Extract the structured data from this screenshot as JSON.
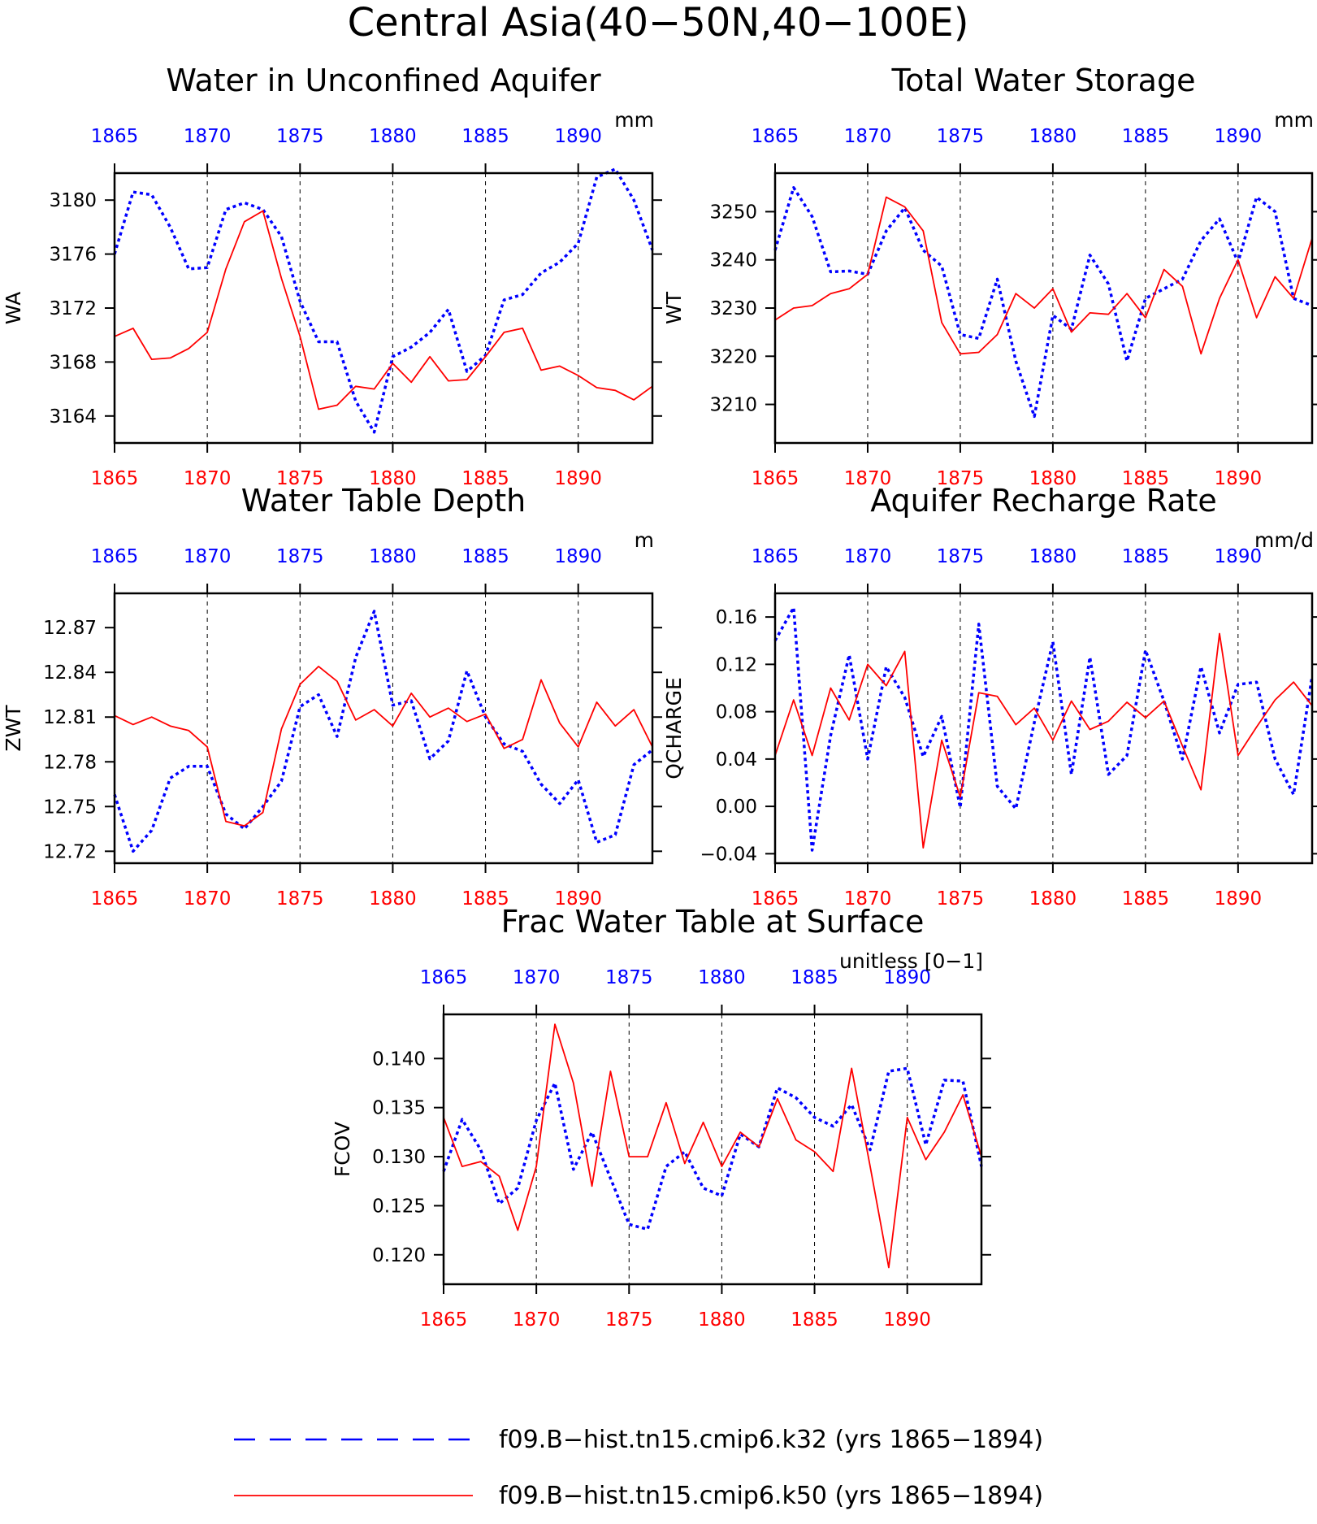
{
  "figure": {
    "title": "Central Asia(40−50N,40−100E)",
    "colors": {
      "k32": "#0000ff",
      "k50": "#ff0000",
      "axis": "#000000"
    }
  },
  "legend": {
    "items": [
      {
        "label": "f09.B−hist.tn15.cmip6.k32 (yrs 1865−1894)",
        "color": "#0000ff",
        "style": "dashed"
      },
      {
        "label": "f09.B−hist.tn15.cmip6.k50 (yrs 1865−1894)",
        "color": "#ff0000",
        "style": "solid"
      }
    ]
  },
  "chart_data": [
    {
      "type": "line",
      "title": "Water in Unconfined Aquifer",
      "ylabel": "WA",
      "units": "mm",
      "xlim": [
        1865,
        1894
      ],
      "ylim": [
        3162,
        3182
      ],
      "x_ticks": [
        1865,
        1870,
        1875,
        1880,
        1885,
        1890
      ],
      "y_ticks": [
        "3164",
        "3168",
        "3172",
        "3176",
        "3180"
      ],
      "grid": "vertical dashed at x ticks",
      "x": [
        1865,
        1866,
        1867,
        1868,
        1869,
        1870,
        1871,
        1872,
        1873,
        1874,
        1875,
        1876,
        1877,
        1878,
        1879,
        1880,
        1881,
        1882,
        1883,
        1884,
        1885,
        1886,
        1887,
        1888,
        1889,
        1890,
        1891,
        1892,
        1893,
        1894
      ],
      "series": [
        {
          "key": "k32",
          "color": "#0000ff",
          "dashed": true,
          "values": [
            3176.0,
            3180.6,
            3180.4,
            3178.0,
            3174.9,
            3175.0,
            3179.3,
            3179.8,
            3179.3,
            3177.3,
            3172.5,
            3169.5,
            3169.5,
            3165.1,
            3162.8,
            3168.4,
            3169.1,
            3170.2,
            3171.9,
            3167.3,
            3168.5,
            3172.6,
            3173.0,
            3174.6,
            3175.4,
            3176.8,
            3181.7,
            3182.3,
            3180.0,
            3176.3
          ]
        },
        {
          "key": "k50",
          "color": "#ff0000",
          "dashed": false,
          "values": [
            3169.9,
            3170.5,
            3168.2,
            3168.3,
            3169.0,
            3170.2,
            3174.9,
            3178.4,
            3179.2,
            3174.2,
            3169.9,
            3164.5,
            3164.8,
            3166.2,
            3166.0,
            3167.9,
            3166.5,
            3168.4,
            3166.6,
            3166.7,
            3168.4,
            3170.2,
            3170.5,
            3167.4,
            3167.7,
            3167.0,
            3166.1,
            3165.9,
            3165.2,
            3166.2
          ]
        }
      ]
    },
    {
      "type": "line",
      "title": "Total Water Storage",
      "ylabel": "WT",
      "units": "mm",
      "xlim": [
        1865,
        1894
      ],
      "ylim": [
        3202,
        3258
      ],
      "x_ticks": [
        1865,
        1870,
        1875,
        1880,
        1885,
        1890
      ],
      "y_ticks": [
        "3210",
        "3220",
        "3230",
        "3240",
        "3250"
      ],
      "grid": "vertical dashed at x ticks",
      "x": [
        1865,
        1866,
        1867,
        1868,
        1869,
        1870,
        1871,
        1872,
        1873,
        1874,
        1875,
        1876,
        1877,
        1878,
        1879,
        1880,
        1881,
        1882,
        1883,
        1884,
        1885,
        1886,
        1887,
        1888,
        1889,
        1890,
        1891,
        1892,
        1893,
        1894
      ],
      "series": [
        {
          "key": "k32",
          "color": "#0000ff",
          "dashed": true,
          "values": [
            3242,
            3255,
            3249,
            3237.5,
            3237.7,
            3237,
            3246,
            3250.8,
            3242,
            3238.7,
            3224.5,
            3223.7,
            3236,
            3219,
            3207.5,
            3228.5,
            3225.6,
            3241,
            3235,
            3219,
            3232,
            3234,
            3236,
            3244,
            3248.5,
            3239.5,
            3253,
            3250,
            3232,
            3230.5
          ]
        },
        {
          "key": "k50",
          "color": "#ff0000",
          "dashed": false,
          "values": [
            3227.5,
            3230,
            3230.5,
            3233,
            3234,
            3237,
            3253,
            3251,
            3246,
            3227,
            3220.5,
            3220.8,
            3224.5,
            3233,
            3230,
            3234,
            3225,
            3229,
            3228.7,
            3233,
            3228,
            3238,
            3234.5,
            3220.5,
            3232,
            3240,
            3228,
            3236.5,
            3232,
            3244.5
          ]
        }
      ]
    },
    {
      "type": "line",
      "title": "Water Table Depth",
      "ylabel": "ZWT",
      "units": "m",
      "xlim": [
        1865,
        1894
      ],
      "ylim": [
        12.712,
        12.893
      ],
      "x_ticks": [
        1865,
        1870,
        1875,
        1880,
        1885,
        1890
      ],
      "y_ticks": [
        "12.72",
        "12.75",
        "12.78",
        "12.81",
        "12.84",
        "12.87"
      ],
      "grid": "vertical dashed at x ticks",
      "x": [
        1865,
        1866,
        1867,
        1868,
        1869,
        1870,
        1871,
        1872,
        1873,
        1874,
        1875,
        1876,
        1877,
        1878,
        1879,
        1880,
        1881,
        1882,
        1883,
        1884,
        1885,
        1886,
        1887,
        1888,
        1889,
        1890,
        1891,
        1892,
        1893,
        1894
      ],
      "series": [
        {
          "key": "k32",
          "color": "#0000ff",
          "dashed": true,
          "values": [
            12.758,
            12.72,
            12.734,
            12.769,
            12.777,
            12.777,
            12.745,
            12.735,
            12.75,
            12.767,
            12.817,
            12.825,
            12.797,
            12.85,
            12.881,
            12.818,
            12.821,
            12.782,
            12.794,
            12.841,
            12.81,
            12.792,
            12.787,
            12.765,
            12.752,
            12.768,
            12.726,
            12.731,
            12.778,
            12.788
          ]
        },
        {
          "key": "k50",
          "color": "#ff0000",
          "dashed": false,
          "values": [
            12.811,
            12.805,
            12.81,
            12.804,
            12.801,
            12.79,
            12.74,
            12.737,
            12.746,
            12.802,
            12.832,
            12.844,
            12.834,
            12.808,
            12.815,
            12.804,
            12.826,
            12.81,
            12.816,
            12.807,
            12.812,
            12.789,
            12.795,
            12.835,
            12.806,
            12.79,
            12.82,
            12.804,
            12.815,
            12.79
          ]
        }
      ]
    },
    {
      "type": "line",
      "title": "Aquifer Recharge Rate",
      "ylabel": "QCHARGE",
      "units": "mm/d",
      "xlim": [
        1865,
        1894
      ],
      "ylim": [
        -0.048,
        0.18
      ],
      "x_ticks": [
        1865,
        1870,
        1875,
        1880,
        1885,
        1890
      ],
      "y_ticks": [
        "−0.04",
        "0.00",
        "0.04",
        "0.08",
        "0.12",
        "0.16"
      ],
      "grid": "vertical dashed at x ticks",
      "x": [
        1865,
        1866,
        1867,
        1868,
        1869,
        1870,
        1871,
        1872,
        1873,
        1874,
        1875,
        1876,
        1877,
        1878,
        1879,
        1880,
        1881,
        1882,
        1883,
        1884,
        1885,
        1886,
        1887,
        1888,
        1889,
        1890,
        1891,
        1892,
        1893,
        1894
      ],
      "series": [
        {
          "key": "k32",
          "color": "#0000ff",
          "dashed": true,
          "values": [
            0.14,
            0.168,
            -0.037,
            0.06,
            0.128,
            0.04,
            0.118,
            0.092,
            0.042,
            0.076,
            -0.001,
            0.154,
            0.017,
            -0.002,
            0.071,
            0.139,
            0.027,
            0.126,
            0.027,
            0.043,
            0.132,
            0.089,
            0.04,
            0.118,
            0.062,
            0.103,
            0.105,
            0.04,
            0.01,
            0.11
          ]
        },
        {
          "key": "k50",
          "color": "#ff0000",
          "dashed": false,
          "values": [
            0.043,
            0.09,
            0.043,
            0.1,
            0.073,
            0.12,
            0.102,
            0.131,
            -0.035,
            0.056,
            0.008,
            0.096,
            0.093,
            0.069,
            0.083,
            0.056,
            0.089,
            0.065,
            0.072,
            0.088,
            0.075,
            0.089,
            0.051,
            0.014,
            0.146,
            0.043,
            0.067,
            0.09,
            0.105,
            0.085
          ]
        }
      ]
    },
    {
      "type": "line",
      "title": "Frac Water Table at Surface",
      "ylabel": "FCOV",
      "units": "unitless [0−1]",
      "xlim": [
        1865,
        1894
      ],
      "ylim": [
        0.117,
        0.1445
      ],
      "x_ticks": [
        1865,
        1870,
        1875,
        1880,
        1885,
        1890
      ],
      "y_ticks": [
        "0.120",
        "0.125",
        "0.130",
        "0.135",
        "0.140"
      ],
      "grid": "vertical dashed at x ticks",
      "x": [
        1865,
        1866,
        1867,
        1868,
        1869,
        1870,
        1871,
        1872,
        1873,
        1874,
        1875,
        1876,
        1877,
        1878,
        1879,
        1880,
        1881,
        1882,
        1883,
        1884,
        1885,
        1886,
        1887,
        1888,
        1889,
        1890,
        1891,
        1892,
        1893,
        1894
      ],
      "series": [
        {
          "key": "k32",
          "color": "#0000ff",
          "dashed": true,
          "values": [
            0.1285,
            0.1338,
            0.1307,
            0.1252,
            0.1268,
            0.1337,
            0.1375,
            0.1287,
            0.1325,
            0.1278,
            0.1231,
            0.1226,
            0.129,
            0.1305,
            0.1268,
            0.126,
            0.1323,
            0.131,
            0.137,
            0.136,
            0.134,
            0.1331,
            0.1353,
            0.1307,
            0.1387,
            0.139,
            0.1312,
            0.1378,
            0.1377,
            0.129
          ]
        },
        {
          "key": "k50",
          "color": "#ff0000",
          "dashed": false,
          "values": [
            0.134,
            0.129,
            0.1295,
            0.128,
            0.1225,
            0.129,
            0.1435,
            0.1375,
            0.127,
            0.1387,
            0.13,
            0.13,
            0.1355,
            0.1293,
            0.1335,
            0.129,
            0.1325,
            0.131,
            0.1359,
            0.1317,
            0.1305,
            0.1285,
            0.139,
            0.129,
            0.1187,
            0.134,
            0.1297,
            0.1325,
            0.1363,
            0.13
          ]
        }
      ]
    }
  ]
}
